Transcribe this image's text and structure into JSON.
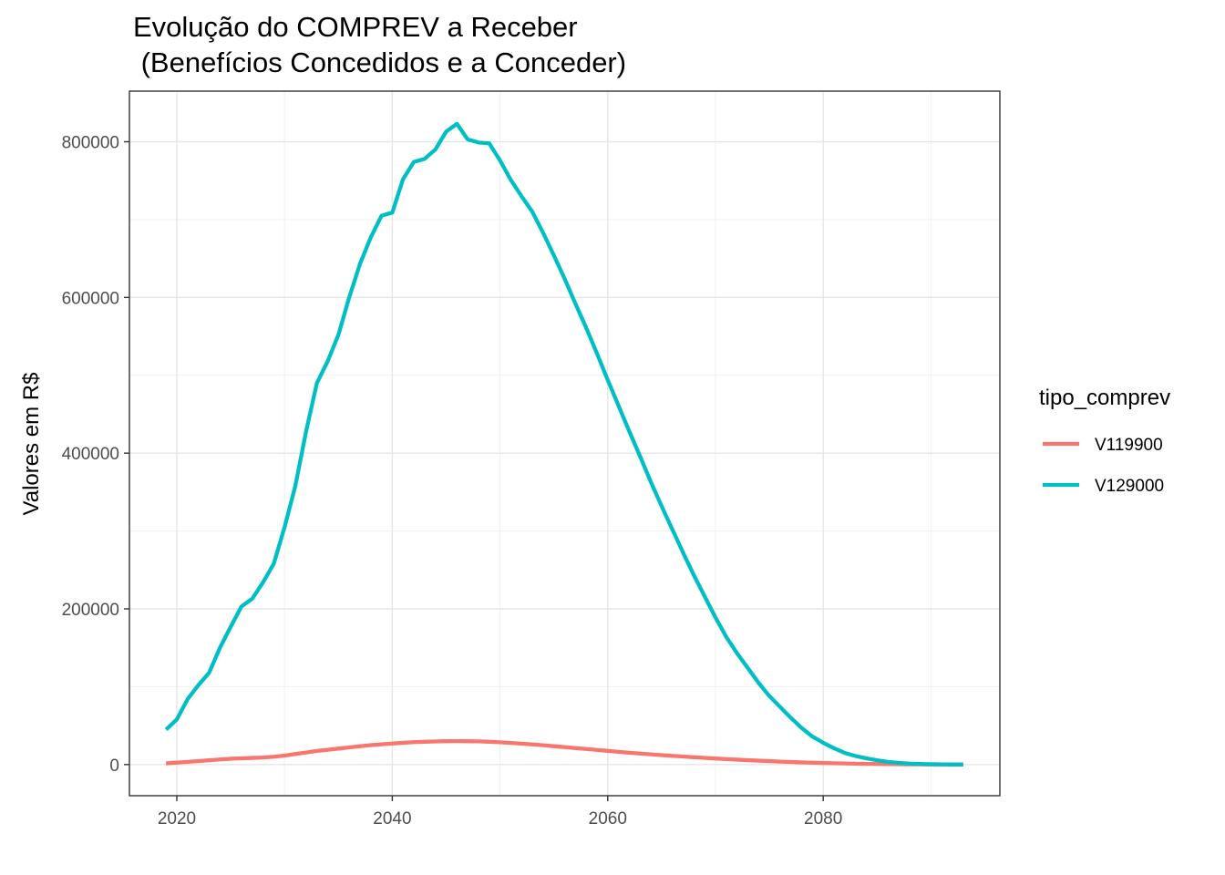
{
  "chart_data": {
    "type": "line",
    "title_line1": "Evolução do COMPREV a Receber",
    "title_line2": " (Benefícios Concedidos e a Conceder)",
    "xlabel": "",
    "ylabel": "Valores em R$",
    "xlim": [
      2015.6,
      2096.4
    ],
    "ylim": [
      -40000,
      865000
    ],
    "x_ticks": [
      2020,
      2040,
      2060,
      2080
    ],
    "x_minor_ticks": [
      2030,
      2050,
      2070,
      2090
    ],
    "y_ticks": [
      0,
      200000,
      400000,
      600000,
      800000
    ],
    "y_minor_ticks": [
      100000,
      300000,
      500000,
      700000
    ],
    "grid": true,
    "legend": {
      "title": "tipo_comprev",
      "placement": "right"
    },
    "colors": {
      "V119900": "#F8766D",
      "V129000": "#00BFC4"
    },
    "x": [
      2019,
      2020,
      2021,
      2022,
      2023,
      2024,
      2025,
      2026,
      2027,
      2028,
      2029,
      2030,
      2031,
      2032,
      2033,
      2034,
      2035,
      2036,
      2037,
      2038,
      2039,
      2040,
      2041,
      2042,
      2043,
      2044,
      2045,
      2046,
      2047,
      2048,
      2049,
      2050,
      2051,
      2052,
      2053,
      2054,
      2055,
      2056,
      2057,
      2058,
      2059,
      2060,
      2061,
      2062,
      2063,
      2064,
      2065,
      2066,
      2067,
      2068,
      2069,
      2070,
      2071,
      2072,
      2073,
      2074,
      2075,
      2076,
      2077,
      2078,
      2079,
      2080,
      2081,
      2082,
      2083,
      2084,
      2085,
      2086,
      2087,
      2088,
      2089,
      2090,
      2091,
      2092,
      2093
    ],
    "series": [
      {
        "name": "V119900",
        "values": [
          1500,
          2500,
          3500,
          4500,
          5500,
          6500,
          7500,
          8000,
          8500,
          9000,
          10000,
          11500,
          13500,
          15500,
          17500,
          19000,
          20500,
          22000,
          23500,
          25000,
          26000,
          27000,
          28000,
          28800,
          29300,
          29700,
          30000,
          30100,
          30000,
          29800,
          29300,
          28600,
          27800,
          26900,
          25900,
          24800,
          23600,
          22400,
          21200,
          20000,
          18800,
          17600,
          16400,
          15200,
          14100,
          13100,
          12100,
          11200,
          10300,
          9400,
          8600,
          7800,
          7000,
          6300,
          5600,
          5000,
          4400,
          3800,
          3300,
          2800,
          2400,
          2000,
          1700,
          1400,
          1100,
          900,
          700,
          500,
          380,
          280,
          200,
          140,
          90,
          50,
          20
        ]
      },
      {
        "name": "V129000",
        "values": [
          45000,
          58000,
          84000,
          102000,
          118000,
          150000,
          177000,
          203000,
          213000,
          234000,
          258000,
          305000,
          358000,
          428000,
          490000,
          518000,
          552000,
          600000,
          643000,
          677000,
          705000,
          709000,
          752000,
          774000,
          778000,
          790000,
          813000,
          823000,
          803000,
          799000,
          798000,
          776000,
          751000,
          730000,
          710000,
          683000,
          654000,
          624000,
          592000,
          561000,
          528000,
          494000,
          461000,
          428000,
          396000,
          363000,
          332000,
          302000,
          272000,
          243000,
          216000,
          189000,
          164000,
          143000,
          124000,
          105000,
          88000,
          74000,
          60000,
          47000,
          36000,
          28000,
          21000,
          15000,
          11000,
          8000,
          5500,
          3500,
          2200,
          1300,
          800,
          450,
          250,
          120,
          50
        ]
      }
    ]
  }
}
